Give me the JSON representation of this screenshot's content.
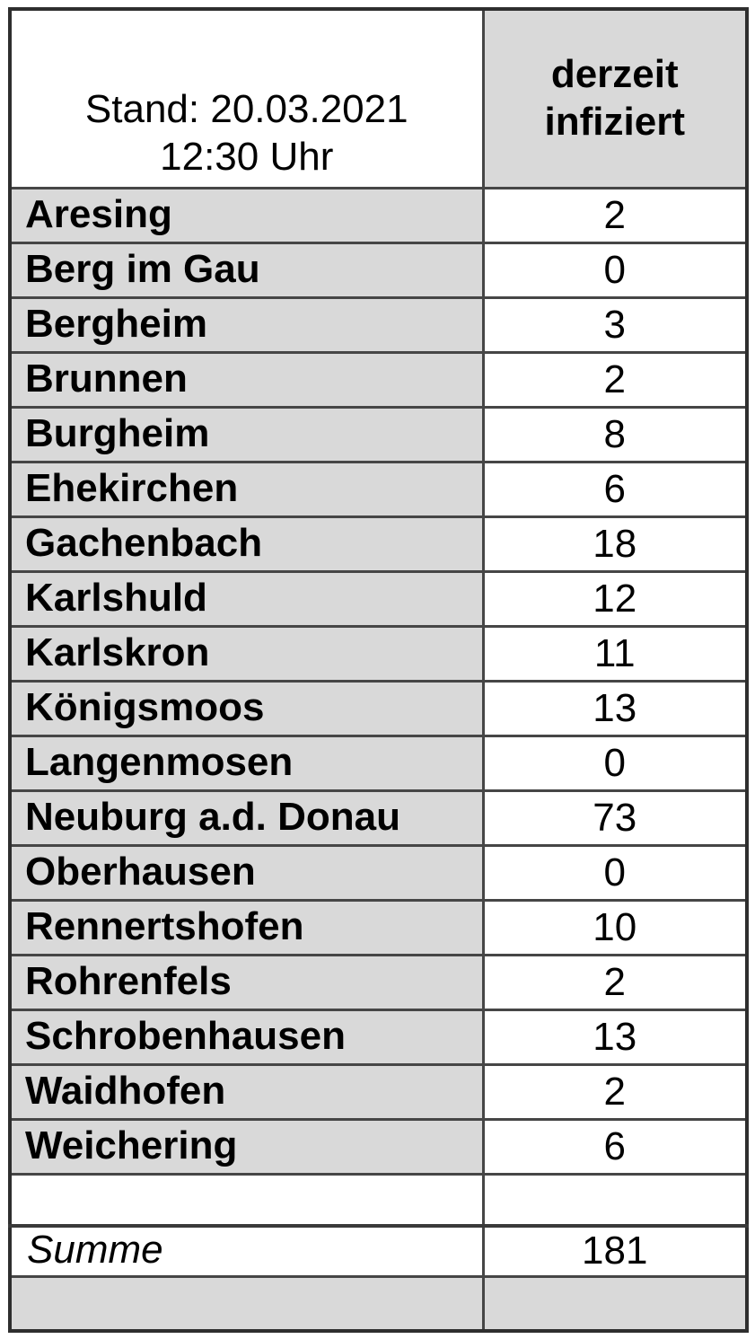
{
  "header": {
    "stand_line1": "Stand: 20.03.2021",
    "stand_line2": "12:30 Uhr",
    "infected_line1": "derzeit",
    "infected_line2": "infiziert"
  },
  "table": {
    "rows": [
      {
        "name": "Aresing",
        "value": "2"
      },
      {
        "name": "Berg im Gau",
        "value": "0"
      },
      {
        "name": "Bergheim",
        "value": "3"
      },
      {
        "name": "Brunnen",
        "value": "2"
      },
      {
        "name": "Burgheim",
        "value": "8"
      },
      {
        "name": "Ehekirchen",
        "value": "6"
      },
      {
        "name": "Gachenbach",
        "value": "18"
      },
      {
        "name": "Karlshuld",
        "value": "12"
      },
      {
        "name": "Karlskron",
        "value": "11"
      },
      {
        "name": "Königsmoos",
        "value": "13"
      },
      {
        "name": "Langenmosen",
        "value": "0"
      },
      {
        "name": "Neuburg a.d. Donau",
        "value": "73"
      },
      {
        "name": "Oberhausen",
        "value": "0"
      },
      {
        "name": "Rennertshofen",
        "value": "10"
      },
      {
        "name": "Rohrenfels",
        "value": "2"
      },
      {
        "name": "Schrobenhausen",
        "value": "13"
      },
      {
        "name": "Waidhofen",
        "value": "2"
      },
      {
        "name": "Weichering",
        "value": "6"
      }
    ],
    "summary": {
      "label": "Summe",
      "value": "181"
    }
  },
  "colors": {
    "cell_gray": "#d9d9d9",
    "border": "#464646",
    "text": "#000000",
    "page_background": "#ffffff"
  }
}
